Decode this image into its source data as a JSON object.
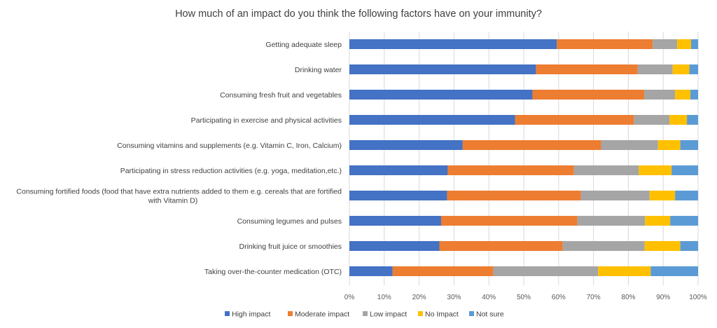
{
  "chart_data": {
    "type": "bar",
    "orientation": "horizontal",
    "stacked": "percent",
    "title": "How much of an impact do you think the following factors have on your immunity?",
    "xlabel": "",
    "ylabel": "",
    "xlim": [
      0,
      100
    ],
    "x_ticks": [
      "0%",
      "10%",
      "20%",
      "30%",
      "40%",
      "50%",
      "60%",
      "70%",
      "80%",
      "90%",
      "100%"
    ],
    "grid": "vertical",
    "legend_position": "bottom",
    "categories": [
      [
        "Getting adequate sleep"
      ],
      [
        "Drinking water"
      ],
      [
        "Consuming fresh fruit and vegetables"
      ],
      [
        "Participating in exercise and physical activities"
      ],
      [
        "Consuming vitamins and supplements (e.g. Vitamin C, Iron, Calcium)"
      ],
      [
        "Participating in stress reduction activities (e.g. yoga, meditation,etc.)"
      ],
      [
        "Consuming fortified foods (food that have extra nutrients added to them e.g. cereals that are fortified",
        "with Vitamin D)"
      ],
      [
        "Consuming legumes and pulses"
      ],
      [
        "Drinking fruit juice or smoothies"
      ],
      [
        "Taking over-the-counter medication (OTC)"
      ]
    ],
    "series": [
      {
        "name": "High impact",
        "color": "#4472C4",
        "values": [
          59.5,
          53.5,
          52.5,
          47.5,
          32.5,
          28.2,
          28.0,
          26.3,
          25.8,
          12.4
        ]
      },
      {
        "name": "Moderate impact",
        "color": "#ED7D31",
        "values": [
          27.5,
          29.2,
          32.1,
          34.1,
          39.7,
          36.2,
          38.4,
          39.1,
          35.4,
          28.9
        ]
      },
      {
        "name": "Low impact",
        "color": "#A5A5A5",
        "values": [
          7.0,
          10.0,
          8.8,
          10.2,
          16.3,
          18.6,
          19.7,
          19.4,
          23.5,
          30.0
        ]
      },
      {
        "name": "No Impact",
        "color": "#FFC000",
        "values": [
          4.0,
          4.8,
          4.4,
          5.0,
          6.4,
          9.4,
          7.3,
          7.2,
          10.2,
          15.1
        ]
      },
      {
        "name": "Not sure",
        "color": "#5B9BD5",
        "values": [
          2.0,
          2.5,
          2.2,
          3.2,
          5.1,
          7.6,
          6.6,
          8.0,
          5.1,
          13.6
        ]
      }
    ]
  }
}
